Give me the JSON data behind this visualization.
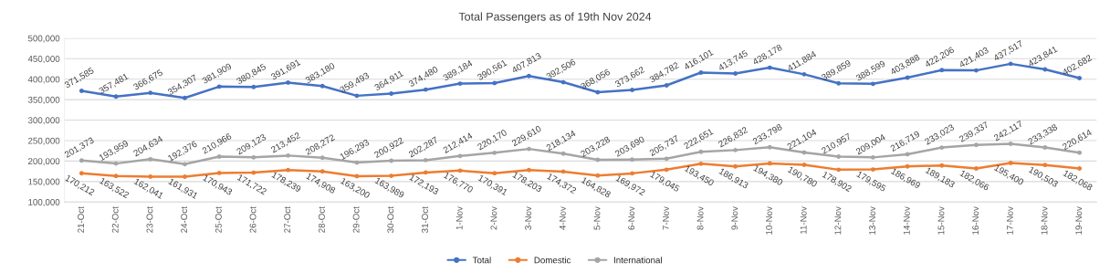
{
  "chart_data": {
    "type": "line",
    "title": "Total Passengers as of 19th Nov 2024",
    "categories": [
      "21-Oct",
      "22-Oct",
      "23-Oct",
      "24-Oct",
      "25-Oct",
      "26-Oct",
      "27-Oct",
      "28-Oct",
      "29-Oct",
      "30-Oct",
      "31-Oct",
      "1-Nov",
      "2-Nov",
      "3-Nov",
      "4-Nov",
      "5-Nov",
      "6-Nov",
      "7-Nov",
      "8-Nov",
      "9-Nov",
      "10-Nov",
      "11-Nov",
      "12-Nov",
      "13-Nov",
      "14-Nov",
      "15-Nov",
      "16-Nov",
      "17-Nov",
      "18-Nov",
      "19-Nov"
    ],
    "series": [
      {
        "name": "Total",
        "color": "#4472c4",
        "values": [
          371585,
          357481,
          366675,
          354307,
          381909,
          380845,
          391691,
          383180,
          359493,
          364911,
          374480,
          389184,
          390561,
          407813,
          392506,
          368056,
          373662,
          384782,
          416101,
          413745,
          428178,
          411884,
          389859,
          388599,
          403888,
          422206,
          421403,
          437517,
          423841,
          402682
        ],
        "value_labels": [
          "371,585",
          "357,481",
          "366,675",
          "354,307",
          "381,909",
          "380,845",
          "391,691",
          "383,180",
          "359,493",
          "364,911",
          "374,480",
          "389,184",
          "390,561",
          "407,813",
          "392,506",
          "368,056",
          "373,662",
          "384,782",
          "416,101",
          "413,745",
          "428,178",
          "411,884",
          "389,859",
          "388,599",
          "403,888",
          "422,206",
          "421,403",
          "437,517",
          "423,841",
          "402,682"
        ]
      },
      {
        "name": "Domestic",
        "color": "#ed7d31",
        "values": [
          170212,
          163522,
          162041,
          161931,
          170943,
          171722,
          178239,
          174908,
          163200,
          163989,
          172193,
          176770,
          170391,
          178203,
          174372,
          164828,
          169972,
          179045,
          193450,
          186913,
          194380,
          190780,
          178902,
          179595,
          186969,
          189183,
          182066,
          195400,
          190503,
          182068
        ],
        "value_labels": [
          "170,212",
          "163,522",
          "162,041",
          "161,931",
          "170,943",
          "171,722",
          "178,239",
          "174,908",
          "163,200",
          "163,989",
          "172,193",
          "176,770",
          "170,391",
          "178,203",
          "174,372",
          "164,828",
          "169,972",
          "179,045",
          "193,450",
          "186,913",
          "194,380",
          "190,780",
          "178,902",
          "179,595",
          "186,969",
          "189,183",
          "182,066",
          "195,400",
          "190,503",
          "182,068"
        ]
      },
      {
        "name": "International",
        "color": "#a5a5a5",
        "values": [
          201373,
          193959,
          204634,
          192376,
          210966,
          209123,
          213452,
          208272,
          196293,
          200922,
          202287,
          212414,
          220170,
          229610,
          218134,
          203228,
          203690,
          205737,
          222651,
          226832,
          233798,
          221104,
          210957,
          209004,
          216719,
          233023,
          239337,
          242117,
          233338,
          220614
        ],
        "value_labels": [
          "201,373",
          "193,959",
          "204,634",
          "192,376",
          "210,966",
          "209,123",
          "213,452",
          "208,272",
          "196,293",
          "200,922",
          "202,287",
          "212,414",
          "220,170",
          "229,610",
          "218,134",
          "203,228",
          "203,690",
          "205,737",
          "222,651",
          "226,832",
          "233,798",
          "221,104",
          "210,957",
          "209,004",
          "216,719",
          "233,023",
          "239,337",
          "242,117",
          "233,338",
          "220,614"
        ]
      }
    ],
    "ylim": [
      100000,
      500000
    ],
    "yticks": [
      {
        "value": 100000,
        "label": "100,000"
      },
      {
        "value": 150000,
        "label": "150,000"
      },
      {
        "value": 200000,
        "label": "200,000"
      },
      {
        "value": 250000,
        "label": "250,000"
      },
      {
        "value": 300000,
        "label": "300,000"
      },
      {
        "value": 350000,
        "label": "350,000"
      },
      {
        "value": 400000,
        "label": "400,000"
      },
      {
        "value": 450000,
        "label": "450,000"
      },
      {
        "value": 500000,
        "label": "500,000"
      }
    ],
    "grid": "y",
    "legend": "bottom",
    "marker": "circle",
    "line_style": "solid"
  }
}
